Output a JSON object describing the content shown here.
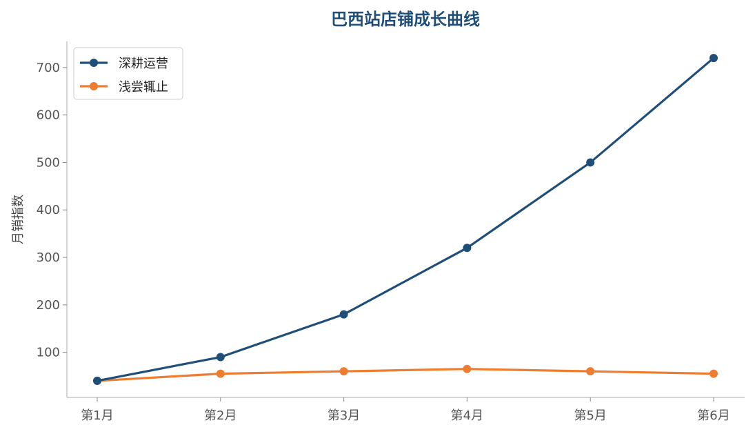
{
  "chart_data": {
    "type": "line",
    "title": "巴西站店铺成长曲线",
    "xlabel": "",
    "ylabel": "月销指数",
    "categories": [
      "第1月",
      "第2月",
      "第3月",
      "第4月",
      "第5月",
      "第6月"
    ],
    "yticks": [
      100,
      200,
      300,
      400,
      500,
      600,
      700
    ],
    "ylim": [
      5,
      755
    ],
    "grid": false,
    "legend_position": "top-left",
    "series": [
      {
        "name": "深耕运营",
        "color": "#1f4e79",
        "values": [
          40,
          90,
          180,
          320,
          500,
          720
        ]
      },
      {
        "name": "浅尝辄止",
        "color": "#ed7d31",
        "values": [
          40,
          55,
          60,
          65,
          60,
          55
        ]
      }
    ]
  }
}
